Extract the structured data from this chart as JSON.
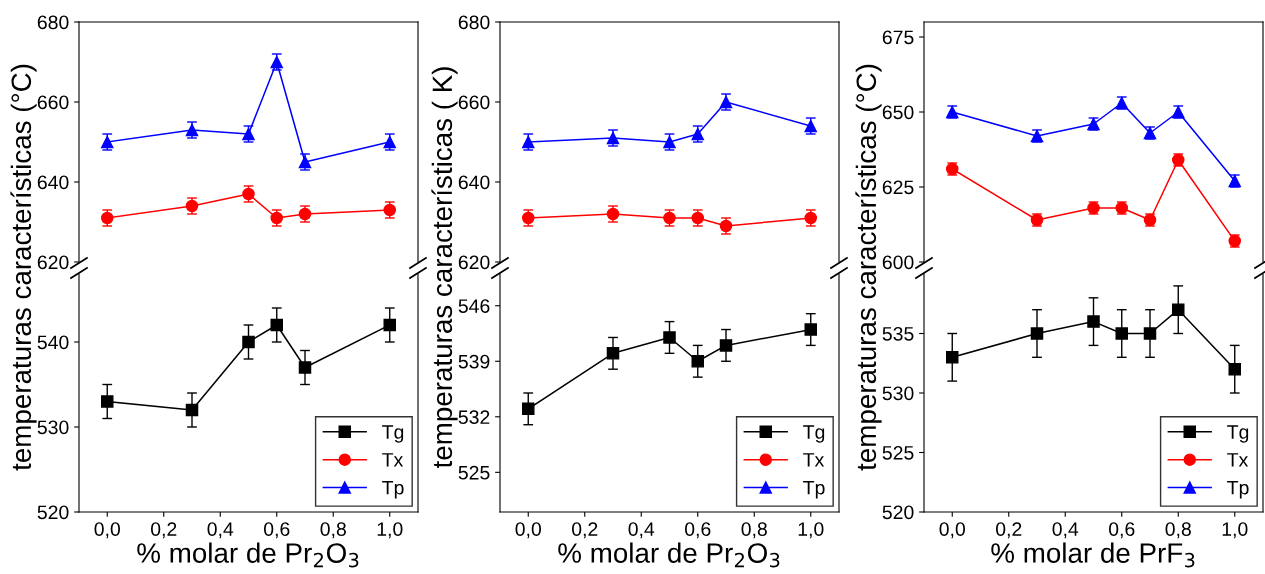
{
  "chart_data": [
    {
      "type": "line",
      "xlim": [
        -0.1,
        1.1
      ],
      "ylim": [
        620,
        680
      ],
      "yticks": [
        620,
        640,
        660,
        680
      ],
      "tick_labels": "y",
      "legend": "bottom right",
      "x": [
        0,
        0.3,
        0.5,
        0.6,
        0.7,
        1.0
      ],
      "series": [
        {
          "name": "Tx",
          "color": "#ff0000",
          "marker": "circle",
          "values": [
            631,
            634,
            637,
            631,
            632,
            633
          ],
          "errors": [
            2,
            2,
            2,
            2,
            2,
            2
          ]
        },
        {
          "name": "Tp",
          "color": "#0000ff",
          "marker": "triangle",
          "values": [
            650,
            653,
            652,
            670,
            645,
            650
          ],
          "errors": [
            2,
            2,
            2,
            2,
            2,
            2
          ]
        }
      ]
    },
    {
      "type": "line",
      "xlabel": "% molar de Pr$_{2}$O$_{3}$",
      "ylabel": "temperaturas características (°C)",
      "xlim": [
        -0.1,
        1.1
      ],
      "xticks": [
        {
          "value": 0,
          "label": "0,0"
        },
        {
          "value": 0.2,
          "label": "0,2"
        },
        {
          "value": 0.4,
          "label": "0,4"
        },
        {
          "value": 0.6,
          "label": "0,6"
        },
        {
          "value": 0.8,
          "label": "0,8"
        },
        {
          "value": 1.0,
          "label": "1,0"
        }
      ],
      "ylim": [
        520,
        548
      ],
      "yticks": [
        520,
        530,
        540
      ],
      "legend": "bottom right",
      "x": [
        0,
        0.3,
        0.5,
        0.6,
        0.7,
        1.0
      ],
      "series": [
        {
          "name": "Tg",
          "color": "#000000",
          "marker": "square",
          "values": [
            533,
            532,
            540,
            542,
            537,
            542
          ],
          "errors": [
            2,
            2,
            2,
            2,
            2,
            2
          ]
        }
      ]
    },
    {
      "type": "line",
      "xlim": [
        -0.1,
        1.1
      ],
      "ylim": [
        620,
        680
      ],
      "yticks": [
        620,
        640,
        660,
        680
      ],
      "tick_labels": "y",
      "legend": "bottom right",
      "x": [
        0,
        0.3,
        0.5,
        0.6,
        0.7,
        1.0
      ],
      "series": [
        {
          "name": "Tx",
          "color": "#ff0000",
          "marker": "circle",
          "values": [
            631,
            632,
            631,
            631,
            629,
            631
          ],
          "errors": [
            2,
            2,
            2,
            2,
            2,
            2
          ]
        },
        {
          "name": "Tp",
          "color": "#0000ff",
          "marker": "triangle",
          "values": [
            650,
            651,
            650,
            652,
            660,
            654
          ],
          "errors": [
            2,
            2,
            2,
            2,
            2,
            2
          ]
        }
      ]
    },
    {
      "type": "line",
      "xlabel": "% molar de Pr$_{2}$O$_{3}$",
      "ylabel": "temperaturas características ( K)",
      "xlim": [
        -0.1,
        1.1
      ],
      "xticks": [
        {
          "value": 0,
          "label": "0,0"
        },
        {
          "value": 0.2,
          "label": "0,2"
        },
        {
          "value": 0.4,
          "label": "0,4"
        },
        {
          "value": 0.6,
          "label": "0,6"
        },
        {
          "value": 0.8,
          "label": "0,8"
        },
        {
          "value": 1.0,
          "label": "1,0"
        }
      ],
      "ylim": [
        520,
        550
      ],
      "yticks": [
        525,
        532,
        539,
        546
      ],
      "legend": "bottom right",
      "x": [
        0,
        0.3,
        0.5,
        0.6,
        0.7,
        1.0
      ],
      "series": [
        {
          "name": "Tg",
          "color": "#000000",
          "marker": "square",
          "values": [
            533,
            540,
            542,
            539,
            541,
            543
          ],
          "errors": [
            2,
            2,
            2,
            2,
            2,
            2
          ]
        }
      ]
    },
    {
      "type": "line",
      "xlim": [
        -0.1,
        1.1
      ],
      "ylim": [
        600,
        680
      ],
      "yticks": [
        600,
        625,
        650,
        675
      ],
      "tick_labels": "y",
      "legend": "bottom right",
      "x": [
        0,
        0.3,
        0.5,
        0.6,
        0.7,
        0.8,
        1.0
      ],
      "series": [
        {
          "name": "Tx",
          "color": "#ff0000",
          "marker": "circle",
          "values": [
            631,
            614,
            618,
            618,
            614,
            634,
            607
          ],
          "errors": [
            2,
            2,
            2,
            2,
            2,
            2,
            2
          ]
        },
        {
          "name": "Tp",
          "color": "#0000ff",
          "marker": "triangle",
          "values": [
            650,
            642,
            646,
            653,
            643,
            650,
            627
          ],
          "errors": [
            2,
            2,
            2,
            2,
            2,
            2,
            2
          ]
        }
      ]
    },
    {
      "type": "line",
      "xlabel": "% molar de PrF$_{3}$",
      "ylabel": "temperaturas características (°C)",
      "xlim": [
        -0.1,
        1.1
      ],
      "xticks": [
        {
          "value": 0,
          "label": "0,0"
        },
        {
          "value": 0.2,
          "label": "0,2"
        },
        {
          "value": 0.4,
          "label": "0,4"
        },
        {
          "value": 0.6,
          "label": "0,6"
        },
        {
          "value": 0.8,
          "label": "0,8"
        },
        {
          "value": 1.0,
          "label": "1,0"
        }
      ],
      "ylim": [
        520,
        540
      ],
      "yticks": [
        520,
        525,
        530,
        535
      ],
      "legend": "bottom right",
      "x": [
        0,
        0.3,
        0.5,
        0.6,
        0.7,
        0.8,
        1.0
      ],
      "series": [
        {
          "name": "Tg",
          "color": "#000000",
          "marker": "square",
          "values": [
            533,
            535,
            536,
            535,
            535,
            537,
            532
          ],
          "errors": [
            2,
            2,
            2,
            2,
            2,
            2,
            2
          ]
        }
      ]
    }
  ]
}
